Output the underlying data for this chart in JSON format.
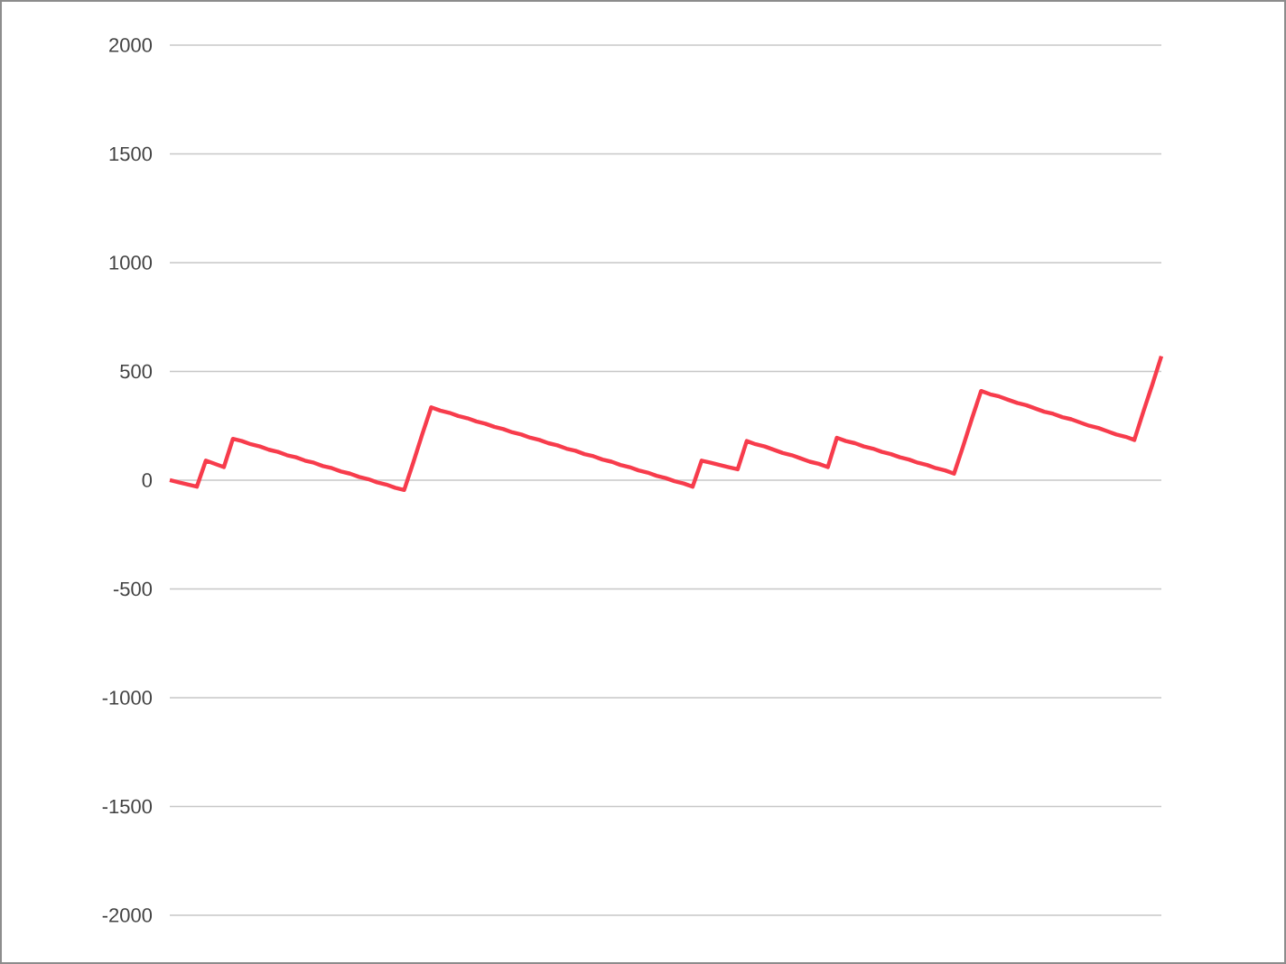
{
  "chart_data": {
    "type": "line",
    "categories": [
      null,
      null,
      null,
      null,
      null,
      null,
      null,
      null,
      null,
      null,
      null,
      null,
      null,
      null,
      null,
      null,
      null,
      null,
      null,
      null,
      null,
      null,
      null,
      null,
      null,
      null,
      null,
      null,
      null,
      null,
      null,
      null,
      null,
      null,
      null,
      null,
      null,
      null,
      null,
      null,
      null,
      null,
      null,
      null,
      null,
      null,
      null,
      null,
      null,
      null,
      null,
      null,
      null,
      null,
      null,
      null,
      null,
      null,
      null,
      null,
      null,
      null,
      null,
      null,
      null,
      null,
      null,
      null,
      null,
      null,
      null,
      null,
      null,
      null,
      null,
      null,
      null,
      null,
      null,
      null,
      null,
      null,
      null,
      null,
      null,
      null,
      null,
      null,
      null,
      null,
      null,
      null,
      null,
      null,
      null,
      null,
      null,
      null,
      null,
      null,
      null,
      null,
      null,
      null,
      null,
      null,
      null,
      null,
      null,
      null,
      null
    ],
    "series": [
      {
        "color": "#f73c4c",
        "values": [
          0,
          -10,
          -20,
          -30,
          90,
          75,
          60,
          190,
          180,
          165,
          155,
          140,
          130,
          115,
          105,
          90,
          80,
          65,
          55,
          40,
          30,
          15,
          5,
          -10,
          -20,
          -35,
          -45,
          80,
          210,
          335,
          320,
          310,
          295,
          285,
          270,
          260,
          245,
          235,
          220,
          210,
          195,
          185,
          170,
          160,
          145,
          135,
          120,
          110,
          95,
          85,
          70,
          60,
          45,
          35,
          20,
          10,
          -5,
          -15,
          -30,
          90,
          80,
          70,
          60,
          50,
          180,
          165,
          155,
          140,
          125,
          115,
          100,
          85,
          75,
          60,
          195,
          180,
          170,
          155,
          145,
          130,
          120,
          105,
          95,
          80,
          70,
          55,
          45,
          30,
          155,
          285,
          410,
          395,
          385,
          370,
          355,
          345,
          330,
          315,
          305,
          290,
          280,
          265,
          250,
          240,
          225,
          210,
          200,
          185,
          315,
          440,
          570
        ]
      }
    ],
    "ylim": [
      -2000,
      2000
    ],
    "yticks": [
      -2000,
      -1500,
      -1000,
      -500,
      0,
      500,
      1000,
      1500,
      2000
    ],
    "tick_labels": "y",
    "grid": "y",
    "marker": "none",
    "line_style": "solid"
  }
}
